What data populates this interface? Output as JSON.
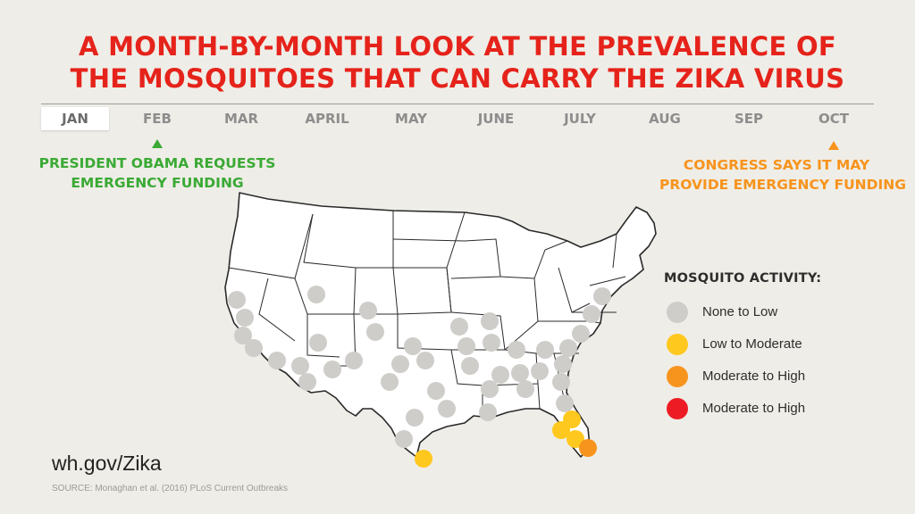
{
  "title": {
    "line1": "A MONTH-BY-MONTH LOOK AT THE PREVALENCE OF",
    "line2": "THE MOSQUITOES THAT CAN CARRY THE ZIKA VIRUS",
    "color": "#e5231b"
  },
  "timeline": {
    "months": [
      "JAN",
      "FEB",
      "MAR",
      "APRIL",
      "MAY",
      "JUNE",
      "JULY",
      "AUG",
      "SEP",
      "OCT"
    ],
    "active_month": "JAN"
  },
  "events": [
    {
      "month": "FEB",
      "line1": "PRESIDENT OBAMA REQUESTS",
      "line2": "EMERGENCY FUNDING",
      "color": "#3aaa35"
    },
    {
      "month": "OCT",
      "line1": "CONGRESS SAYS IT MAY",
      "line2": "PROVIDE EMERGENCY FUNDING",
      "color": "#f7941d"
    }
  ],
  "legend": {
    "title": "MOSQUITO ACTIVITY:",
    "items": [
      {
        "label": "None to Low",
        "color": "#cfcdca"
      },
      {
        "label": "Low to Moderate",
        "color": "#ffc81e"
      },
      {
        "label": "Moderate to High",
        "color": "#f7941d"
      },
      {
        "label": "Moderate to High",
        "color": "#ed1c24"
      }
    ]
  },
  "map": {
    "month": "JAN",
    "dot_colors": {
      "none_low": "#cfcdca",
      "low_moderate": "#ffc81e",
      "moderate_high": "#f7941d"
    }
  },
  "footer": {
    "url": "wh.gov/Zika",
    "source": "SOURCE: Monaghan et al. (2016) PLoS Current Outbreaks"
  }
}
